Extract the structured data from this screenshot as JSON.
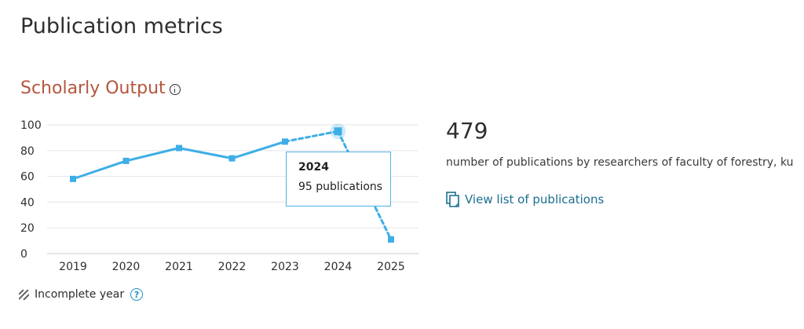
{
  "page": {
    "title": "Publication metrics"
  },
  "section": {
    "title": "Scholarly Output",
    "info_icon": "info-icon"
  },
  "chart_data": {
    "type": "line",
    "categories": [
      "2019",
      "2020",
      "2021",
      "2022",
      "2023",
      "2024",
      "2025"
    ],
    "values": [
      58,
      72,
      82,
      74,
      87,
      95,
      11
    ],
    "incomplete_from_index": 4,
    "highlight_index": 5,
    "ylim": [
      0,
      100
    ],
    "yticks": [
      0,
      20,
      40,
      60,
      80,
      100
    ],
    "grid": true,
    "line_color": "#3eaee6",
    "title": "",
    "xlabel": "",
    "ylabel": ""
  },
  "tooltip": {
    "year": "2024",
    "text": "95 publications"
  },
  "summary": {
    "total": "479",
    "description": "number of publications by researchers of faculty of forestry, ku",
    "link_label": "View list of publications",
    "link_icon": "document-icon"
  },
  "legend": {
    "label": "Incomplete year",
    "icon": "hatch-icon",
    "help_icon": "help-icon"
  }
}
